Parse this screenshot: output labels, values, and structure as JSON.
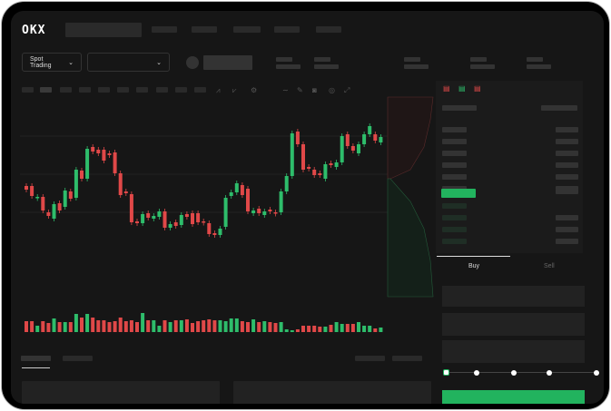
{
  "header": {
    "logo": "OKX"
  },
  "market": {
    "type_selector": "Spot Trading"
  },
  "orderbook": {
    "best_level_color": "#22b35e"
  },
  "order_form": {
    "tabs": [
      {
        "label": "Buy",
        "active": true
      },
      {
        "label": "Sell",
        "active": false
      }
    ],
    "slider_percent": 0,
    "submit_color": "#22b35e"
  },
  "colors": {
    "up": "#2ebd6b",
    "down": "#e04848"
  },
  "chart_data": {
    "type": "candlestick",
    "candles": [
      [
        97,
        93
      ],
      [
        97,
        86
      ],
      [
        84,
        85
      ],
      [
        85,
        70
      ],
      [
        68,
        64
      ],
      [
        61,
        77
      ],
      [
        78,
        70
      ],
      [
        74,
        92
      ],
      [
        91,
        83
      ],
      [
        84,
        115
      ],
      [
        114,
        105
      ],
      [
        105,
        138
      ],
      [
        140,
        135
      ],
      [
        137,
        133
      ],
      [
        137,
        125
      ],
      [
        133,
        131
      ],
      [
        134,
        111
      ],
      [
        111,
        87
      ],
      [
        91,
        89
      ],
      [
        88,
        57
      ],
      [
        58,
        56
      ],
      [
        56,
        66
      ],
      [
        67,
        62
      ],
      [
        61,
        64
      ],
      [
        63,
        69
      ],
      [
        69,
        51
      ],
      [
        51,
        55
      ],
      [
        57,
        53
      ],
      [
        54,
        65
      ],
      [
        66,
        63
      ],
      [
        67,
        55
      ],
      [
        67,
        57
      ],
      [
        58,
        57
      ],
      [
        56,
        44
      ],
      [
        45,
        43
      ],
      [
        43,
        50
      ],
      [
        52,
        84
      ],
      [
        86,
        90
      ],
      [
        90,
        100
      ],
      [
        98,
        87
      ],
      [
        94,
        69
      ],
      [
        67,
        70
      ],
      [
        72,
        67
      ],
      [
        65,
        69
      ],
      [
        71,
        69
      ],
      [
        68,
        67
      ],
      [
        68,
        91
      ],
      [
        91,
        108
      ],
      [
        108,
        155
      ],
      [
        157,
        143
      ],
      [
        143,
        115
      ],
      [
        118,
        116
      ],
      [
        115,
        109
      ],
      [
        111,
        109
      ],
      [
        105,
        121
      ],
      [
        122,
        120
      ],
      [
        118,
        123
      ],
      [
        123,
        152
      ],
      [
        154,
        141
      ],
      [
        141,
        136
      ],
      [
        133,
        143
      ],
      [
        143,
        154
      ],
      [
        154,
        163
      ],
      [
        154,
        147
      ],
      [
        145,
        151
      ]
    ],
    "volume": [
      12,
      12,
      7,
      12,
      10,
      15,
      11,
      11,
      11,
      20,
      16,
      20,
      16,
      13,
      13,
      11,
      12,
      16,
      12,
      13,
      11,
      21,
      13,
      13,
      7,
      13,
      11,
      13,
      13,
      14,
      10,
      12,
      13,
      14,
      13,
      13,
      12,
      15,
      15,
      12,
      11,
      14,
      11,
      12,
      11,
      10,
      11,
      3,
      2,
      3,
      7,
      7,
      7,
      6,
      6,
      8,
      11,
      9,
      9,
      9,
      11,
      7,
      7,
      4,
      5
    ]
  }
}
